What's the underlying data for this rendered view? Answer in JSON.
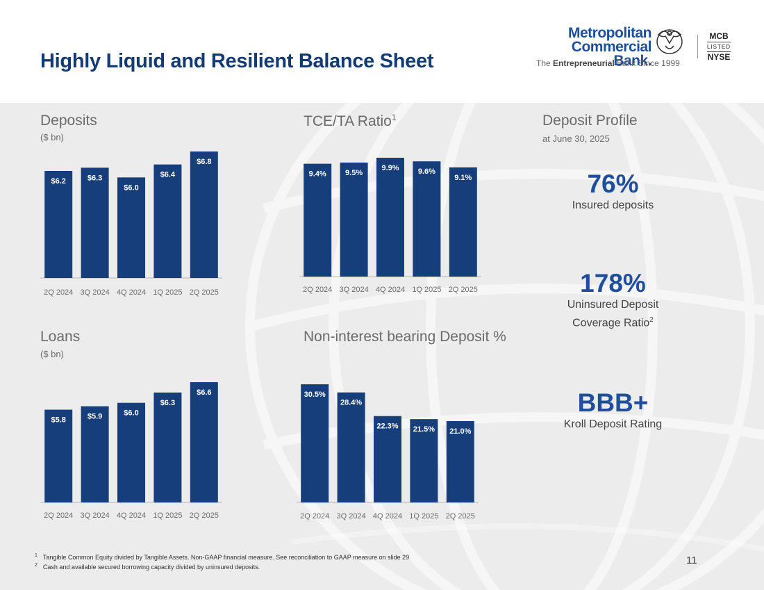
{
  "header": {
    "title": "Highly Liquid and Resilient Balance Sheet",
    "logo": {
      "line1": "Metropolitan",
      "line2": "Commercial Bank.",
      "tagline_pre": "The ",
      "tagline_bold": "Entrepreneurial",
      "tagline_post": " Bank Since 1999",
      "ticker": "MCB",
      "listed": "LISTED",
      "exchange": "NYSE"
    }
  },
  "colors": {
    "bar": "#163e7a",
    "title": "#123a73",
    "accent": "#1f4f9c"
  },
  "deposits": {
    "title": "Deposits",
    "subtitle": "($ bn)"
  },
  "tce": {
    "title": "TCE/TA Ratio",
    "footnote_ref": "1"
  },
  "loans": {
    "title": "Loans",
    "subtitle": "($ bn)"
  },
  "nib": {
    "title": "Non-interest bearing Deposit %"
  },
  "chart_data": [
    {
      "id": "deposits",
      "type": "bar",
      "categories": [
        "2Q 2024",
        "3Q 2024",
        "4Q 2024",
        "1Q 2025",
        "2Q 2025"
      ],
      "values": [
        6.2,
        6.3,
        6.0,
        6.4,
        6.8
      ],
      "labels": [
        "$6.2",
        "$6.3",
        "$6.0",
        "$6.4",
        "$6.8"
      ],
      "ylim": [
        2.9,
        6.8
      ],
      "grid": false
    },
    {
      "id": "tce",
      "type": "bar",
      "categories": [
        "2Q 2024",
        "3Q 2024",
        "4Q 2024",
        "1Q 2025",
        "2Q 2025"
      ],
      "values": [
        9.4,
        9.5,
        9.9,
        9.6,
        9.1
      ],
      "labels": [
        "9.4%",
        "9.5%",
        "9.9%",
        "9.6%",
        "9.1%"
      ],
      "ylim": [
        0,
        9.9
      ],
      "grid": false
    },
    {
      "id": "loans",
      "type": "bar",
      "categories": [
        "2Q 2024",
        "3Q 2024",
        "4Q 2024",
        "1Q 2025",
        "2Q 2025"
      ],
      "values": [
        5.8,
        5.9,
        6.0,
        6.3,
        6.6
      ],
      "labels": [
        "$5.8",
        "$5.9",
        "$6.0",
        "$6.3",
        "$6.6"
      ],
      "ylim": [
        3.1,
        6.6
      ],
      "grid": false
    },
    {
      "id": "nib",
      "type": "bar",
      "categories": [
        "2Q 2024",
        "3Q 2024",
        "4Q 2024",
        "1Q 2025",
        "2Q 2025"
      ],
      "values": [
        30.5,
        28.4,
        22.3,
        21.5,
        21.0
      ],
      "labels": [
        "30.5%",
        "28.4%",
        "22.3%",
        "21.5%",
        "21.0%"
      ],
      "ylim": [
        0,
        30.5
      ],
      "grid": false
    }
  ],
  "profile": {
    "title": "Deposit Profile",
    "subtitle": "at June 30, 2025",
    "stats": [
      {
        "value": "76%",
        "label": "Insured deposits"
      },
      {
        "value": "178%",
        "label_line1": "Uninsured Deposit",
        "label_line2": "Coverage Ratio",
        "footnote_ref": "2"
      },
      {
        "value": "BBB+",
        "label": "Kroll Deposit Rating"
      }
    ]
  },
  "footnotes": [
    {
      "ref": "1",
      "text": "Tangible Common Equity divided by Tangible Assets. Non-GAAP financial measure. See reconciliation to GAAP measure on slide 29"
    },
    {
      "ref": "2",
      "text": "Cash and available secured borrowing capacity divided by uninsured deposits."
    }
  ],
  "page_number": "11"
}
